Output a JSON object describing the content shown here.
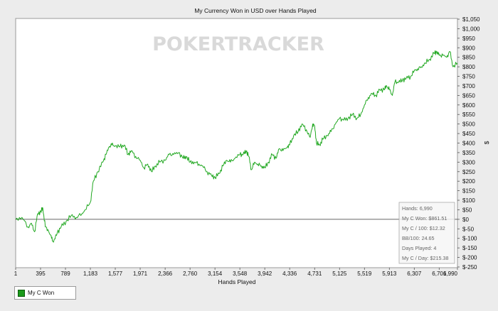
{
  "chart_data": {
    "type": "line",
    "title": "My Currency Won in USD over Hands Played",
    "xlabel": "Hands Played",
    "ylabel": "$",
    "x_ticks": [
      "1",
      "395",
      "789",
      "1,183",
      "1,577",
      "1,971",
      "2,366",
      "2,760",
      "3,154",
      "3,548",
      "3,942",
      "4,336",
      "4,731",
      "5,125",
      "5,519",
      "5,913",
      "6,307",
      "6,701",
      "6,990"
    ],
    "y_ticks": [
      "$1,050",
      "$1,000",
      "$950",
      "$900",
      "$850",
      "$800",
      "$750",
      "$700",
      "$650",
      "$600",
      "$550",
      "$500",
      "$450",
      "$400",
      "$350",
      "$300",
      "$250",
      "$200",
      "$150",
      "$100",
      "$50",
      "$0",
      "$-50",
      "$-100",
      "$-150",
      "$-200",
      "$-250"
    ],
    "xlim": [
      1,
      6990
    ],
    "ylim": [
      -250,
      1050
    ],
    "grid": false,
    "legend_position": "bottom-left",
    "color": "#22a822",
    "series": [
      {
        "name": "My C Won",
        "points": [
          [
            1,
            0
          ],
          [
            100,
            10
          ],
          [
            200,
            -40
          ],
          [
            250,
            -20
          ],
          [
            300,
            -65
          ],
          [
            350,
            30
          ],
          [
            400,
            40
          ],
          [
            430,
            60
          ],
          [
            470,
            -40
          ],
          [
            520,
            -60
          ],
          [
            570,
            -100
          ],
          [
            600,
            -120
          ],
          [
            660,
            -70
          ],
          [
            720,
            -40
          ],
          [
            800,
            -10
          ],
          [
            880,
            20
          ],
          [
            960,
            10
          ],
          [
            1050,
            30
          ],
          [
            1100,
            50
          ],
          [
            1183,
            90
          ],
          [
            1230,
            200
          ],
          [
            1300,
            250
          ],
          [
            1380,
            300
          ],
          [
            1430,
            340
          ],
          [
            1480,
            380
          ],
          [
            1520,
            390
          ],
          [
            1577,
            385
          ],
          [
            1650,
            380
          ],
          [
            1720,
            390
          ],
          [
            1780,
            340
          ],
          [
            1830,
            360
          ],
          [
            1900,
            330
          ],
          [
            1971,
            310
          ],
          [
            2030,
            270
          ],
          [
            2090,
            290
          ],
          [
            2150,
            250
          ],
          [
            2210,
            280
          ],
          [
            2280,
            300
          ],
          [
            2366,
            310
          ],
          [
            2430,
            340
          ],
          [
            2500,
            340
          ],
          [
            2580,
            350
          ],
          [
            2650,
            320
          ],
          [
            2700,
            330
          ],
          [
            2760,
            300
          ],
          [
            2830,
            300
          ],
          [
            2900,
            290
          ],
          [
            2960,
            280
          ],
          [
            3030,
            250
          ],
          [
            3100,
            230
          ],
          [
            3154,
            220
          ],
          [
            3220,
            240
          ],
          [
            3280,
            280
          ],
          [
            3340,
            310
          ],
          [
            3400,
            300
          ],
          [
            3470,
            320
          ],
          [
            3548,
            340
          ],
          [
            3600,
            340
          ],
          [
            3650,
            360
          ],
          [
            3690,
            330
          ],
          [
            3730,
            260
          ],
          [
            3780,
            300
          ],
          [
            3830,
            290
          ],
          [
            3890,
            280
          ],
          [
            3942,
            270
          ],
          [
            4000,
            300
          ],
          [
            4060,
            340
          ],
          [
            4120,
            320
          ],
          [
            4170,
            370
          ],
          [
            4230,
            360
          ],
          [
            4300,
            380
          ],
          [
            4336,
            390
          ],
          [
            4400,
            440
          ],
          [
            4470,
            460
          ],
          [
            4530,
            500
          ],
          [
            4600,
            470
          ],
          [
            4660,
            430
          ],
          [
            4700,
            500
          ],
          [
            4731,
            490
          ],
          [
            4760,
            400
          ],
          [
            4810,
            390
          ],
          [
            4860,
            420
          ],
          [
            4930,
            440
          ],
          [
            4990,
            460
          ],
          [
            5060,
            500
          ],
          [
            5125,
            530
          ],
          [
            5190,
            520
          ],
          [
            5260,
            530
          ],
          [
            5330,
            550
          ],
          [
            5400,
            530
          ],
          [
            5460,
            550
          ],
          [
            5519,
            600
          ],
          [
            5580,
            640
          ],
          [
            5640,
            660
          ],
          [
            5700,
            650
          ],
          [
            5760,
            680
          ],
          [
            5830,
            680
          ],
          [
            5870,
            700
          ],
          [
            5913,
            680
          ],
          [
            5960,
            650
          ],
          [
            6000,
            720
          ],
          [
            6060,
            720
          ],
          [
            6120,
            730
          ],
          [
            6180,
            740
          ],
          [
            6250,
            750
          ],
          [
            6307,
            780
          ],
          [
            6360,
            790
          ],
          [
            6420,
            800
          ],
          [
            6480,
            820
          ],
          [
            6550,
            840
          ],
          [
            6620,
            870
          ],
          [
            6660,
            880
          ],
          [
            6701,
            860
          ],
          [
            6760,
            860
          ],
          [
            6820,
            850
          ],
          [
            6870,
            880
          ],
          [
            6920,
            800
          ],
          [
            6990,
            820
          ]
        ]
      }
    ]
  },
  "watermark": "POKERTRACKER",
  "stats": {
    "lines": [
      "Hands: 6,990",
      "My C Won: $861.51",
      "My C / 100: $12.32",
      "BB/100: 24.65",
      "Days Played: 4",
      "My C / Day: $215.38"
    ]
  },
  "legend": {
    "label": "My C Won",
    "swatch_color": "#1a9a1a"
  }
}
